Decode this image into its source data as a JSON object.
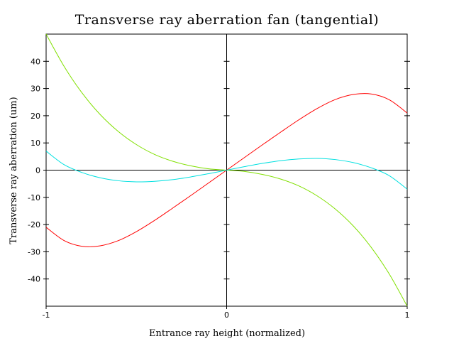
{
  "chart_data": {
    "type": "line",
    "title": "Transverse ray aberration fan (tangential)",
    "xlabel": "Entrance ray height (normalized)",
    "ylabel": "Transverse ray aberration (um)",
    "xlim": [
      -1,
      1
    ],
    "ylim": [
      -50,
      50
    ],
    "x_ticks": [
      -1,
      0,
      1
    ],
    "x_tick_labels": [
      "-1",
      "0",
      "1"
    ],
    "y_ticks": [
      -40,
      -30,
      -20,
      -10,
      0,
      10,
      20,
      30,
      40
    ],
    "y_tick_labels": [
      "-40",
      "-30",
      "-20",
      "-10",
      "0",
      "10",
      "20",
      "30",
      "40"
    ],
    "grid": false,
    "x": [
      -1,
      -0.9,
      -0.8,
      -0.7,
      -0.6,
      -0.5,
      -0.4,
      -0.3,
      -0.2,
      -0.1,
      0,
      0.1,
      0.2,
      0.3,
      0.4,
      0.5,
      0.6,
      0.7,
      0.8,
      0.9,
      1
    ],
    "series": [
      {
        "color": "#ff0000",
        "values": [
          -21,
          -25.9,
          -28.0,
          -27.8,
          -25.9,
          -22.6,
          -18.5,
          -14.0,
          -9.4,
          -4.7,
          0,
          4.7,
          9.4,
          14.0,
          18.5,
          22.6,
          25.9,
          27.8,
          28.0,
          25.9,
          21
        ]
      },
      {
        "color": "#80e000",
        "values": [
          50,
          38.1,
          28.3,
          20.4,
          14.2,
          9.4,
          5.8,
          3.3,
          1.6,
          0.5,
          0,
          -0.5,
          -1.6,
          -3.3,
          -5.8,
          -9.4,
          -14.2,
          -20.4,
          -28.3,
          -38.1,
          -50
        ]
      },
      {
        "color": "#00e0e0",
        "values": [
          7,
          2.0,
          -0.9,
          -2.8,
          -3.9,
          -4.3,
          -4.1,
          -3.5,
          -2.5,
          -1.3,
          0,
          1.3,
          2.5,
          3.5,
          4.1,
          4.3,
          3.9,
          2.8,
          0.9,
          -2.0,
          -7
        ]
      }
    ]
  }
}
